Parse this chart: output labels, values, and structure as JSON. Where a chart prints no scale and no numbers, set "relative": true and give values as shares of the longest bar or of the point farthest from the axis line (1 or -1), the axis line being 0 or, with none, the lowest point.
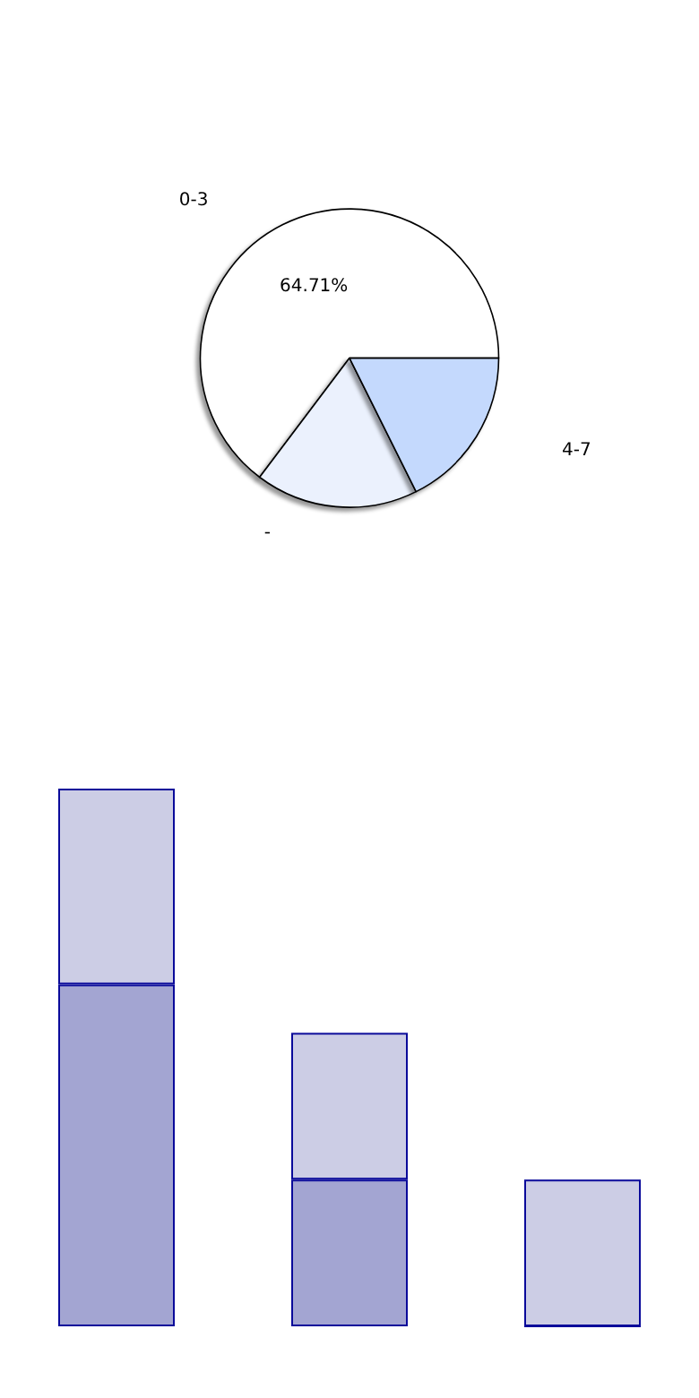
{
  "chart_data": [
    {
      "type": "pie",
      "categories": [
        "0-3",
        "-",
        "4-7"
      ],
      "values": [
        64.71,
        17.65,
        17.64
      ],
      "colors": [
        "#ffffff",
        "#ebf1fd",
        "#c4d9fd"
      ],
      "value_labels": [
        "64.71%",
        null,
        null
      ]
    },
    {
      "type": "bar",
      "relative": true,
      "stacked": true,
      "categories": [
        null,
        null,
        null
      ],
      "series": [
        {
          "color": "#a3a5d2",
          "values": [
            0.636,
            0.273,
            0
          ]
        },
        {
          "color": "#cccde5",
          "values": [
            0.364,
            0.273,
            0.273
          ]
        }
      ]
    }
  ]
}
